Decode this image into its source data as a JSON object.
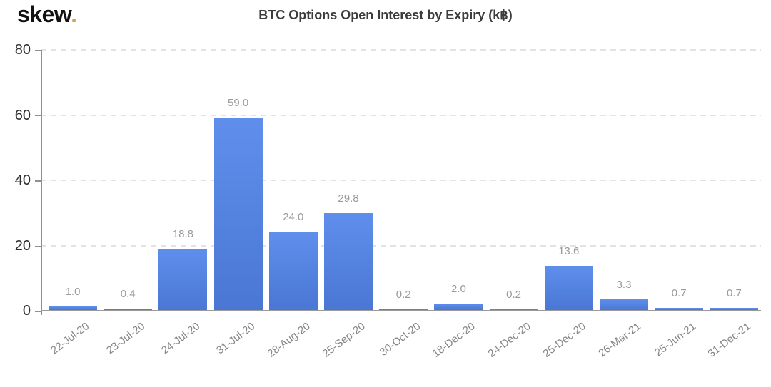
{
  "logo": {
    "text": "skew",
    "dot": ".",
    "text_color": "#121212",
    "dot_color": "#d5a43f"
  },
  "title": "BTC Options Open Interest by Expiry (k฿)",
  "chart_data": {
    "type": "bar",
    "title": "BTC Options Open Interest by Expiry (k฿)",
    "categories": [
      "22-Jul-20",
      "23-Jul-20",
      "24-Jul-20",
      "31-Jul-20",
      "28-Aug-20",
      "25-Sep-20",
      "30-Oct-20",
      "18-Dec-20",
      "24-Dec-20",
      "25-Dec-20",
      "26-Mar-21",
      "25-Jun-21",
      "31-Dec-21"
    ],
    "values": [
      1.0,
      0.4,
      18.8,
      59.0,
      24.0,
      29.8,
      0.2,
      2.0,
      0.2,
      13.6,
      3.3,
      0.7,
      0.7
    ],
    "value_labels": [
      "1.0",
      "0.4",
      "18.8",
      "59.0",
      "24.0",
      "29.8",
      "0.2",
      "2.0",
      "0.2",
      "13.6",
      "3.3",
      "0.7",
      "0.7"
    ],
    "xlabel": "",
    "ylabel": "",
    "ylim": [
      0,
      80
    ],
    "yticks": [
      0,
      20,
      40,
      60,
      80
    ],
    "grid": "horizontal-dashed",
    "legend": "none",
    "xtick_rotation_deg": -37,
    "colors": {
      "bar_top": "#5f8eec",
      "bar_bottom": "#4a77d3",
      "axis": "#8f8f8f",
      "gridline": "#e3e3e3",
      "value_label": "#9a9a9a",
      "ytick_label": "#2f2f2f",
      "xtick_label": "#858585"
    }
  }
}
